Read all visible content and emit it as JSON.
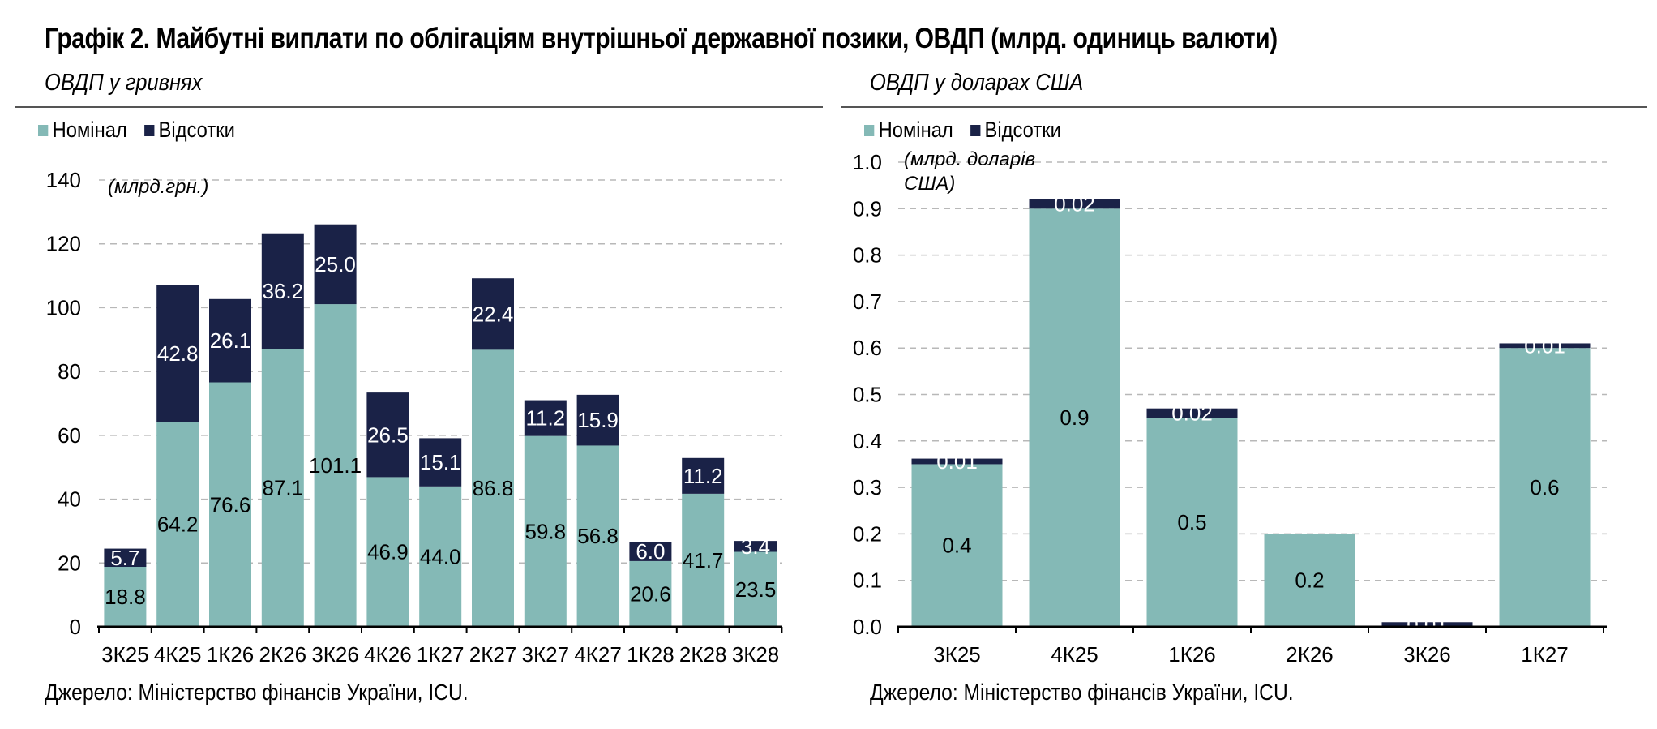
{
  "title": "Графік 2. Майбутні виплати по облігаціям внутрішньої державної позики, ОВДП (млрд. одиниць валюти)",
  "source": "Джерело: Міністерство фінансів України, ICU.",
  "colors": {
    "nominal": "#84b9b6",
    "interest": "#1a2247"
  },
  "chart_data": [
    {
      "type": "bar",
      "stacked": true,
      "subtitle": "ОВДП у гривнях",
      "unit_label": "(млрд.грн.)",
      "legend": [
        "Номінал",
        "Відсотки"
      ],
      "categories": [
        "3К25",
        "4К25",
        "1К26",
        "2К26",
        "3К26",
        "4К26",
        "1К27",
        "2К27",
        "3К27",
        "4К27",
        "1К28",
        "2К28",
        "3К28"
      ],
      "series": [
        {
          "name": "Номінал",
          "values": [
            18.8,
            64.2,
            76.6,
            87.1,
            101.1,
            46.9,
            44.0,
            86.8,
            59.8,
            56.8,
            20.6,
            41.7,
            23.5
          ],
          "labels": [
            "18.8",
            "64.2",
            "76.6",
            "87.1",
            "101.1",
            "46.9",
            "44.0",
            "86.8",
            "59.8",
            "56.8",
            "20.6",
            "41.7",
            "23.5"
          ]
        },
        {
          "name": "Відсотки",
          "values": [
            5.7,
            42.8,
            26.1,
            36.2,
            25.0,
            26.5,
            15.1,
            22.4,
            11.2,
            15.9,
            6.0,
            11.2,
            3.4
          ],
          "labels": [
            "5.7",
            "42.8",
            "26.1",
            "36.2",
            "25.0",
            "26.5",
            "15.1",
            "22.4",
            "11.2",
            "15.9",
            "6.0",
            "11.2",
            "3.4"
          ]
        }
      ],
      "ylim": [
        0,
        140
      ],
      "yticks": [
        0,
        20,
        40,
        60,
        80,
        100,
        120,
        140
      ],
      "ytick_labels": [
        "0",
        "20",
        "40",
        "60",
        "80",
        "100",
        "120",
        "140"
      ],
      "grid": true,
      "legend_position": "top-left"
    },
    {
      "type": "bar",
      "stacked": true,
      "subtitle": "ОВДП у доларах США",
      "unit_label": [
        "(млрд. доларів",
        "США)"
      ],
      "legend": [
        "Номінал",
        "Відсотки"
      ],
      "categories": [
        "3К25",
        "4К25",
        "1К26",
        "2К26",
        "3К26",
        "1К27"
      ],
      "series": [
        {
          "name": "Номінал",
          "values": [
            0.35,
            0.9,
            0.45,
            0.2,
            0.0,
            0.6
          ],
          "labels": [
            "0.4",
            "0.9",
            "0.5",
            "0.2",
            "",
            "0.6"
          ]
        },
        {
          "name": "Відсотки",
          "values": [
            0.012,
            0.02,
            0.02,
            0.0,
            0.01,
            0.01
          ],
          "labels": [
            "0.01",
            "0.02",
            "0.02",
            "",
            "0.01",
            "0.01"
          ]
        }
      ],
      "ylim": [
        0,
        1.0
      ],
      "yticks": [
        0,
        0.1,
        0.2,
        0.3,
        0.4,
        0.5,
        0.6,
        0.7,
        0.8,
        0.9,
        1.0
      ],
      "ytick_labels": [
        "0.0",
        "0.1",
        "0.2",
        "0.3",
        "0.4",
        "0.5",
        "0.6",
        "0.7",
        "0.8",
        "0.9",
        "1.0"
      ],
      "grid": true,
      "legend_position": "top-left"
    }
  ]
}
